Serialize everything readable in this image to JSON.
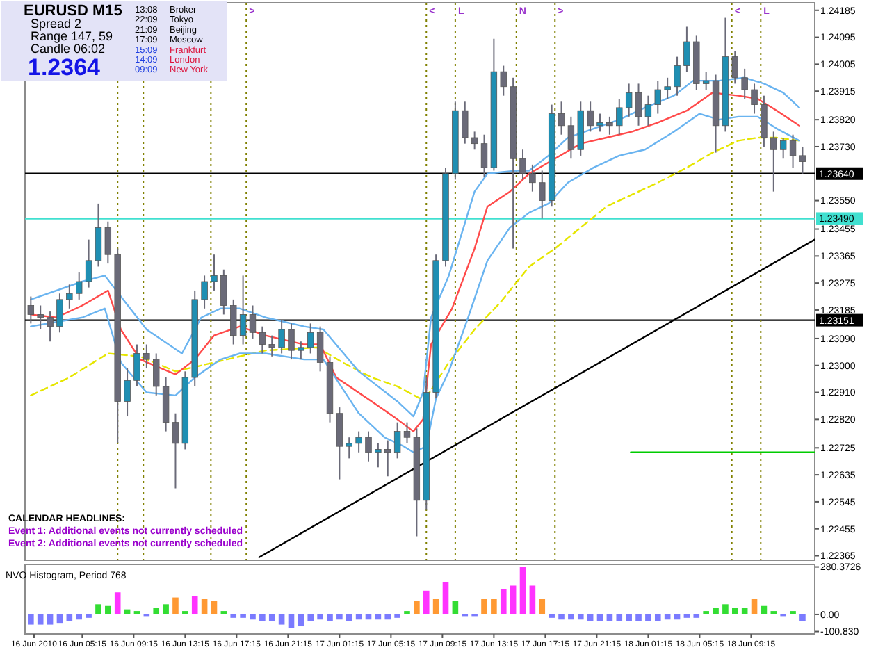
{
  "chart_data": [
    {
      "type": "candlestick",
      "title": "EURUSD M15",
      "tick_labels": "y",
      "x": [
        "2010-06-16T01:15",
        "2010-06-16T02:00",
        "2010-06-16T02:45",
        "2010-06-16T03:30",
        "2010-06-16T04:15",
        "2010-06-16T05:00",
        "2010-06-16T05:45",
        "2010-06-16T06:30",
        "2010-06-16T07:15",
        "2010-06-16T08:00",
        "2010-06-16T08:45",
        "2010-06-16T09:30",
        "2010-06-16T10:15",
        "2010-06-16T11:00",
        "2010-06-16T11:45",
        "2010-06-16T12:30",
        "2010-06-16T13:15",
        "2010-06-16T14:00",
        "2010-06-16T14:45",
        "2010-06-16T15:30",
        "2010-06-16T16:15",
        "2010-06-16T17:00",
        "2010-06-16T17:45",
        "2010-06-16T18:30",
        "2010-06-16T19:15",
        "2010-06-16T20:00",
        "2010-06-16T20:45",
        "2010-06-16T21:30",
        "2010-06-16T22:15",
        "2010-06-16T23:00",
        "2010-06-16T23:45",
        "2010-06-17T00:30",
        "2010-06-17T01:15",
        "2010-06-17T02:00",
        "2010-06-17T02:45",
        "2010-06-17T03:30",
        "2010-06-17T04:15",
        "2010-06-17T05:00",
        "2010-06-17T05:45",
        "2010-06-17T06:30",
        "2010-06-17T07:15",
        "2010-06-17T08:00",
        "2010-06-17T08:45",
        "2010-06-17T09:30",
        "2010-06-17T10:15",
        "2010-06-17T11:00",
        "2010-06-17T11:45",
        "2010-06-17T12:30",
        "2010-06-17T13:15",
        "2010-06-17T14:00",
        "2010-06-17T14:45",
        "2010-06-17T15:30",
        "2010-06-17T16:15",
        "2010-06-17T17:00",
        "2010-06-17T17:45",
        "2010-06-17T18:30",
        "2010-06-17T19:15",
        "2010-06-17T20:00",
        "2010-06-17T20:45",
        "2010-06-17T21:30",
        "2010-06-17T22:15",
        "2010-06-17T23:00",
        "2010-06-17T23:45",
        "2010-06-18T00:30",
        "2010-06-18T01:15",
        "2010-06-18T02:00",
        "2010-06-18T02:45",
        "2010-06-18T03:30",
        "2010-06-18T04:15",
        "2010-06-18T05:00",
        "2010-06-18T05:45",
        "2010-06-18T06:30",
        "2010-06-18T07:15",
        "2010-06-18T08:00",
        "2010-06-18T08:45",
        "2010-06-18T09:30",
        "2010-06-18T10:15",
        "2010-06-18T11:00",
        "2010-06-18T11:45",
        "2010-06-18T12:30",
        "2010-06-18T13:15"
      ],
      "ohlc": [
        [
          1.232,
          1.2323,
          1.2314,
          1.2317
        ],
        [
          1.2317,
          1.232,
          1.2312,
          1.2316
        ],
        [
          1.2316,
          1.2318,
          1.2308,
          1.2313
        ],
        [
          1.2313,
          1.2324,
          1.2311,
          1.2322
        ],
        [
          1.2322,
          1.2327,
          1.2319,
          1.2324
        ],
        [
          1.2324,
          1.2331,
          1.2322,
          1.2328
        ],
        [
          1.2328,
          1.2342,
          1.2326,
          1.2335
        ],
        [
          1.2335,
          1.2354,
          1.2333,
          1.2346
        ],
        [
          1.2346,
          1.2348,
          1.2334,
          1.2337
        ],
        [
          1.2337,
          1.2339,
          1.2274,
          1.2288
        ],
        [
          1.2288,
          1.2299,
          1.2283,
          1.2295
        ],
        [
          1.2295,
          1.2307,
          1.2293,
          1.2304
        ],
        [
          1.2304,
          1.2307,
          1.2299,
          1.2302
        ],
        [
          1.2302,
          1.2304,
          1.229,
          1.2293
        ],
        [
          1.2293,
          1.2296,
          1.2278,
          1.2281
        ],
        [
          1.2281,
          1.2284,
          1.2259,
          1.2274
        ],
        [
          1.2274,
          1.2298,
          1.2272,
          1.2296
        ],
        [
          1.2296,
          1.2325,
          1.2293,
          1.2322
        ],
        [
          1.2322,
          1.233,
          1.2319,
          1.2328
        ],
        [
          1.2328,
          1.2337,
          1.2325,
          1.233
        ],
        [
          1.233,
          1.2332,
          1.2317,
          1.232
        ],
        [
          1.232,
          1.2322,
          1.2307,
          1.231
        ],
        [
          1.231,
          1.233,
          1.2307,
          1.2317
        ],
        [
          1.2317,
          1.232,
          1.2309,
          1.2311
        ],
        [
          1.2311,
          1.2313,
          1.2304,
          1.2307
        ],
        [
          1.2307,
          1.231,
          1.2303,
          1.2306
        ],
        [
          1.2306,
          1.2315,
          1.2304,
          1.2312
        ],
        [
          1.2312,
          1.2314,
          1.2302,
          1.2305
        ],
        [
          1.2305,
          1.2308,
          1.2302,
          1.2306
        ],
        [
          1.2306,
          1.2314,
          1.2304,
          1.2311
        ],
        [
          1.2311,
          1.2313,
          1.2298,
          1.2301
        ],
        [
          1.2301,
          1.2303,
          1.2281,
          1.2284
        ],
        [
          1.2284,
          1.2286,
          1.2262,
          1.2273
        ],
        [
          1.2273,
          1.2276,
          1.2269,
          1.2274
        ],
        [
          1.2274,
          1.2278,
          1.2271,
          1.2276
        ],
        [
          1.2276,
          1.2278,
          1.2268,
          1.2271
        ],
        [
          1.2271,
          1.2274,
          1.2266,
          1.2272
        ],
        [
          1.2272,
          1.2275,
          1.2263,
          1.2271
        ],
        [
          1.2271,
          1.2281,
          1.2269,
          1.2278
        ],
        [
          1.2278,
          1.2281,
          1.2274,
          1.2276
        ],
        [
          1.2276,
          1.2279,
          1.2243,
          1.2255
        ],
        [
          1.2255,
          1.2296,
          1.2252,
          1.2291
        ],
        [
          1.2291,
          1.2337,
          1.2289,
          1.2335
        ],
        [
          1.2335,
          1.2366,
          1.2333,
          1.2364
        ],
        [
          1.2364,
          1.2388,
          1.2362,
          1.2385
        ],
        [
          1.2385,
          1.2388,
          1.2374,
          1.2376
        ],
        [
          1.2376,
          1.2378,
          1.2372,
          1.2374
        ],
        [
          1.2374,
          1.2377,
          1.2363,
          1.2366
        ],
        [
          1.2366,
          1.2409,
          1.2365,
          1.2398
        ],
        [
          1.2398,
          1.24,
          1.239,
          1.2393
        ],
        [
          1.2393,
          1.2396,
          1.2339,
          1.2369
        ],
        [
          1.2369,
          1.2372,
          1.2362,
          1.2364
        ],
        [
          1.2364,
          1.2367,
          1.2358,
          1.2361
        ],
        [
          1.2361,
          1.2365,
          1.2349,
          1.2355
        ],
        [
          1.2355,
          1.2387,
          1.2353,
          1.2384
        ],
        [
          1.2384,
          1.2388,
          1.2377,
          1.238
        ],
        [
          1.238,
          1.2383,
          1.2369,
          1.2372
        ],
        [
          1.2372,
          1.2388,
          1.237,
          1.2385
        ],
        [
          1.2385,
          1.2388,
          1.2378,
          1.238
        ],
        [
          1.238,
          1.2384,
          1.2378,
          1.2381
        ],
        [
          1.2381,
          1.2383,
          1.2377,
          1.238
        ],
        [
          1.238,
          1.2389,
          1.2377,
          1.2386
        ],
        [
          1.2386,
          1.2394,
          1.2383,
          1.2391
        ],
        [
          1.2391,
          1.2394,
          1.238,
          1.2383
        ],
        [
          1.2383,
          1.239,
          1.238,
          1.2387
        ],
        [
          1.2387,
          1.2395,
          1.2384,
          1.2392
        ],
        [
          1.2392,
          1.2396,
          1.2389,
          1.2393
        ],
        [
          1.2393,
          1.2403,
          1.239,
          1.24
        ],
        [
          1.24,
          1.2413,
          1.2398,
          1.2408
        ],
        [
          1.2408,
          1.241,
          1.2392,
          1.2394
        ],
        [
          1.2394,
          1.2398,
          1.2392,
          1.2395
        ],
        [
          1.2395,
          1.2397,
          1.2371,
          1.238
        ],
        [
          1.238,
          1.2416,
          1.2378,
          1.2403
        ],
        [
          1.2403,
          1.2405,
          1.2394,
          1.2396
        ],
        [
          1.2396,
          1.2399,
          1.2389,
          1.2392
        ],
        [
          1.2392,
          1.2394,
          1.2384,
          1.2387
        ],
        [
          1.2387,
          1.239,
          1.2373,
          1.2376
        ],
        [
          1.2376,
          1.2378,
          1.2358,
          1.2372
        ],
        [
          1.2372,
          1.2376,
          1.2369,
          1.2375
        ],
        [
          1.2375,
          1.2377,
          1.2366,
          1.237
        ],
        [
          1.237,
          1.2373,
          1.2364,
          1.2368
        ]
      ],
      "series": [
        {
          "type": "line",
          "color": "#e6e600",
          "line_style": "dashed",
          "x": [
            "2010-06-16T01:15",
            "2010-06-16T04:15",
            "2010-06-16T07:15",
            "2010-06-16T09:45",
            "2010-06-16T12:30",
            "2010-06-16T14:30",
            "2010-06-16T16:30",
            "2010-06-16T19:30",
            "2010-06-16T23:30",
            "2010-06-17T01:30",
            "2010-06-17T03:45",
            "2010-06-17T05:45",
            "2010-06-17T07:30",
            "2010-06-17T08:15",
            "2010-06-17T09:45",
            "2010-06-17T11:45",
            "2010-06-17T13:45",
            "2010-06-17T16:00",
            "2010-06-17T18:00",
            "2010-06-17T20:00",
            "2010-06-17T22:00",
            "2010-06-18T00:00",
            "2010-06-18T02:00",
            "2010-06-18T04:15",
            "2010-06-18T06:15",
            "2010-06-18T08:15",
            "2010-06-18T09:45",
            "2010-06-18T11:15",
            "2010-06-18T13:00"
          ],
          "values": [
            1.229,
            1.2296,
            1.2304,
            1.2303,
            1.2298,
            1.23,
            1.2302,
            1.2305,
            1.2306,
            1.2301,
            1.2296,
            1.2293,
            1.2289,
            1.2291,
            1.2301,
            1.2312,
            1.2321,
            1.2333,
            1.2339,
            1.2346,
            1.2353,
            1.2357,
            1.2361,
            1.2366,
            1.2371,
            1.2375,
            1.2376,
            1.2376,
            1.2375
          ]
        },
        {
          "type": "line",
          "color": "#ff4a4a",
          "x": [
            "2010-06-16T01:15",
            "2010-06-16T03:15",
            "2010-06-16T05:15",
            "2010-06-16T07:15",
            "2010-06-16T08:15",
            "2010-06-16T09:45",
            "2010-06-16T12:30",
            "2010-06-16T14:00",
            "2010-06-16T15:30",
            "2010-06-16T17:30",
            "2010-06-16T19:30",
            "2010-06-16T22:30",
            "2010-06-16T23:45",
            "2010-06-17T01:00",
            "2010-06-17T03:45",
            "2010-06-17T05:45",
            "2010-06-17T07:00",
            "2010-06-17T07:45",
            "2010-06-17T08:22",
            "2010-06-17T10:00",
            "2010-06-17T11:45",
            "2010-06-17T12:45",
            "2010-06-17T14:30",
            "2010-06-17T16:00",
            "2010-06-17T18:00",
            "2010-06-17T20:00",
            "2010-06-17T22:00",
            "2010-06-18T00:00",
            "2010-06-18T02:00",
            "2010-06-18T04:15",
            "2010-06-18T06:15",
            "2010-06-18T08:15",
            "2010-06-18T09:45",
            "2010-06-18T11:15",
            "2010-06-18T13:00"
          ],
          "values": [
            1.2317,
            1.2316,
            1.232,
            1.2325,
            1.2312,
            1.2302,
            1.2297,
            1.2302,
            1.231,
            1.2313,
            1.231,
            1.2307,
            1.2307,
            1.2296,
            1.2288,
            1.2282,
            1.2278,
            1.2282,
            1.2307,
            1.2319,
            1.2339,
            1.2353,
            1.2358,
            1.2364,
            1.2369,
            1.2374,
            1.2376,
            1.2378,
            1.2381,
            1.2385,
            1.2391,
            1.239,
            1.2389,
            1.2385,
            1.238
          ]
        },
        {
          "type": "line",
          "color": "#6ab4f0",
          "x": [
            "2010-06-16T01:15",
            "2010-06-16T05:15",
            "2010-06-16T07:00",
            "2010-06-16T08:15",
            "2010-06-16T10:15",
            "2010-06-16T13:00",
            "2010-06-16T14:30",
            "2010-06-16T16:00",
            "2010-06-16T17:30",
            "2010-06-16T19:30",
            "2010-06-16T22:30",
            "2010-06-17T00:00",
            "2010-06-17T02:45",
            "2010-06-17T05:45",
            "2010-06-17T07:00",
            "2010-06-17T07:45",
            "2010-06-17T08:22",
            "2010-06-17T09:45",
            "2010-06-17T11:45",
            "2010-06-17T12:45",
            "2010-06-17T15:00",
            "2010-06-17T16:00",
            "2010-06-17T17:30",
            "2010-06-17T19:00",
            "2010-06-17T21:00",
            "2010-06-17T23:00",
            "2010-06-18T01:00",
            "2010-06-18T03:15",
            "2010-06-18T04:45",
            "2010-06-18T06:45",
            "2010-06-18T08:45",
            "2010-06-18T10:15",
            "2010-06-18T11:45",
            "2010-06-18T13:00"
          ],
          "values": [
            1.2322,
            1.2328,
            1.233,
            1.2323,
            1.2312,
            1.2304,
            1.2316,
            1.2319,
            1.2319,
            1.2316,
            1.2313,
            1.2312,
            1.2298,
            1.2288,
            1.2283,
            1.2291,
            1.2316,
            1.233,
            1.2358,
            1.2364,
            1.2365,
            1.2365,
            1.237,
            1.2376,
            1.2379,
            1.2382,
            1.2386,
            1.239,
            1.2395,
            1.2395,
            1.2396,
            1.2394,
            1.2391,
            1.2386
          ]
        },
        {
          "type": "line",
          "color": "#6ab4f0",
          "x": [
            "2010-06-16T01:15",
            "2010-06-16T05:15",
            "2010-06-16T07:00",
            "2010-06-16T08:15",
            "2010-06-16T10:15",
            "2010-06-16T12:30",
            "2010-06-16T14:00",
            "2010-06-16T16:00",
            "2010-06-16T17:30",
            "2010-06-16T19:30",
            "2010-06-16T22:30",
            "2010-06-17T00:00",
            "2010-06-17T02:45",
            "2010-06-17T04:45",
            "2010-06-17T06:15",
            "2010-06-17T07:00",
            "2010-06-17T08:00",
            "2010-06-17T08:45",
            "2010-06-17T09:45",
            "2010-06-17T11:15",
            "2010-06-17T12:45",
            "2010-06-17T14:30",
            "2010-06-17T16:00",
            "2010-06-17T17:30",
            "2010-06-17T19:00",
            "2010-06-17T21:00",
            "2010-06-17T23:00",
            "2010-06-18T01:00",
            "2010-06-18T03:15",
            "2010-06-18T05:15",
            "2010-06-18T06:45",
            "2010-06-18T08:15",
            "2010-06-18T09:45",
            "2010-06-18T11:15",
            "2010-06-18T13:00"
          ],
          "values": [
            1.2313,
            1.2316,
            1.2319,
            1.2301,
            1.2291,
            1.229,
            1.2296,
            1.2302,
            1.2304,
            1.2304,
            1.2302,
            1.2302,
            1.2284,
            1.2276,
            1.2273,
            1.2271,
            1.2273,
            1.2289,
            1.2298,
            1.2316,
            1.2335,
            1.2346,
            1.2351,
            1.2354,
            1.2361,
            1.2366,
            1.237,
            1.2372,
            1.2378,
            1.2384,
            1.2382,
            1.2383,
            1.2383,
            1.2379,
            1.2375
          ]
        },
        {
          "type": "line",
          "color": "#000000",
          "x": [
            "2010-06-16T19:00",
            "2010-06-18T14:12"
          ],
          "values": [
            1.2236,
            1.2342
          ]
        },
        {
          "type": "line",
          "color": "#00cc00",
          "x": [
            "2010-06-17T23:54",
            "2010-06-18T14:12"
          ],
          "values": [
            1.2271,
            1.2271
          ]
        }
      ],
      "xlim": [
        "2010-06-16T00:48",
        "2010-06-18T14:12"
      ],
      "ylim": [
        1.2235,
        1.2421
      ],
      "yticks": [
        1.24185,
        1.24095,
        1.24005,
        1.23915,
        {
          "value": 1.2382,
          "label": "1.23820"
        },
        {
          "value": 1.2373,
          "label": "1.23730"
        },
        {
          "value": 1.2355,
          "label": "1.23550"
        },
        1.23455,
        1.23365,
        1.23275,
        1.23185,
        {
          "value": 1.2309,
          "label": "1.23090"
        },
        {
          "value": 1.23,
          "label": "1.23000"
        },
        {
          "value": 1.2291,
          "label": "1.22910"
        },
        {
          "value": 1.2282,
          "label": "1.22820"
        },
        1.22725,
        1.22635,
        1.22545,
        1.22455,
        1.22365
      ],
      "ref_lines": [
        {
          "axis": "y",
          "value": 1.2364,
          "label": "1.23640",
          "color": "#000000"
        },
        {
          "axis": "y",
          "value": 1.2349,
          "label": "1.23490",
          "color": "#40e0d0"
        },
        {
          "axis": "y",
          "value": 1.23151,
          "label": "1.23151",
          "color": "#000000"
        },
        {
          "axis": "x",
          "value": "2010-06-16T08:00",
          "label": null,
          "color": "#808000",
          "line_style": "dotted"
        },
        {
          "axis": "x",
          "value": "2010-06-16T10:00",
          "label": null,
          "color": "#808000",
          "line_style": "dotted"
        },
        {
          "axis": "x",
          "value": "2010-06-16T15:15",
          "label": null,
          "color": "#808000",
          "line_style": "dotted"
        },
        {
          "axis": "x",
          "value": "2010-06-16T18:00",
          "label": ">",
          "color": "#808000",
          "line_style": "dotted"
        },
        {
          "axis": "x",
          "value": "2010-06-17T08:00",
          "label": "<",
          "color": "#808000",
          "line_style": "dotted"
        },
        {
          "axis": "x",
          "value": "2010-06-17T10:15",
          "label": "L",
          "color": "#808000",
          "line_style": "dotted"
        },
        {
          "axis": "x",
          "value": "2010-06-17T15:00",
          "label": "N",
          "color": "#808000",
          "line_style": "dotted"
        },
        {
          "axis": "x",
          "value": "2010-06-17T18:00",
          "label": ">",
          "color": "#808000",
          "line_style": "dotted"
        },
        {
          "axis": "x",
          "value": "2010-06-18T07:45",
          "label": "<",
          "color": "#808000",
          "line_style": "dotted"
        },
        {
          "axis": "x",
          "value": "2010-06-18T10:00",
          "label": "L",
          "color": "#808000",
          "line_style": "dotted"
        }
      ],
      "annotations": [
        "Spread 2",
        "Range 147, 59",
        "Candle 06:02",
        "1.2364",
        "13:08",
        "Broker",
        "22:09",
        "Tokyo",
        "21:09",
        "Beijing",
        "17:09",
        "Moscow",
        "15:09",
        "Frankfurt",
        "14:09",
        "London",
        "09:09",
        "New York",
        "CALENDAR HEADLINES:",
        "Event 1: Additional events not currently scheduled",
        "Event 2: Additional events not currently scheduled"
      ]
    },
    {
      "type": "bar",
      "title": "NVO Histogram, Period 768",
      "x": [
        "2010-06-16T01:15",
        "2010-06-16T02:00",
        "2010-06-16T02:45",
        "2010-06-16T03:30",
        "2010-06-16T04:15",
        "2010-06-16T05:00",
        "2010-06-16T05:45",
        "2010-06-16T06:30",
        "2010-06-16T07:15",
        "2010-06-16T08:00",
        "2010-06-16T08:45",
        "2010-06-16T09:30",
        "2010-06-16T10:15",
        "2010-06-16T11:00",
        "2010-06-16T11:45",
        "2010-06-16T12:30",
        "2010-06-16T13:15",
        "2010-06-16T14:00",
        "2010-06-16T14:45",
        "2010-06-16T15:30",
        "2010-06-16T16:15",
        "2010-06-16T17:00",
        "2010-06-16T17:45",
        "2010-06-16T18:30",
        "2010-06-16T19:15",
        "2010-06-16T20:00",
        "2010-06-16T20:45",
        "2010-06-16T21:30",
        "2010-06-16T22:15",
        "2010-06-16T23:00",
        "2010-06-16T23:45",
        "2010-06-17T00:30",
        "2010-06-17T01:15",
        "2010-06-17T02:00",
        "2010-06-17T02:45",
        "2010-06-17T03:30",
        "2010-06-17T04:15",
        "2010-06-17T05:00",
        "2010-06-17T05:45",
        "2010-06-17T06:30",
        "2010-06-17T07:15",
        "2010-06-17T08:00",
        "2010-06-17T08:45",
        "2010-06-17T09:30",
        "2010-06-17T10:15",
        "2010-06-17T11:00",
        "2010-06-17T11:45",
        "2010-06-17T12:30",
        "2010-06-17T13:15",
        "2010-06-17T14:00",
        "2010-06-17T14:45",
        "2010-06-17T15:30",
        "2010-06-17T16:15",
        "2010-06-17T17:00",
        "2010-06-17T17:45",
        "2010-06-17T18:30",
        "2010-06-17T19:15",
        "2010-06-17T20:00",
        "2010-06-17T20:45",
        "2010-06-17T21:30",
        "2010-06-17T22:15",
        "2010-06-17T23:00",
        "2010-06-17T23:45",
        "2010-06-18T00:30",
        "2010-06-18T01:15",
        "2010-06-18T02:00",
        "2010-06-18T02:45",
        "2010-06-18T03:30",
        "2010-06-18T04:15",
        "2010-06-18T05:00",
        "2010-06-18T05:45",
        "2010-06-18T06:30",
        "2010-06-18T07:15",
        "2010-06-18T08:00",
        "2010-06-18T08:45",
        "2010-06-18T09:30",
        "2010-06-18T10:15",
        "2010-06-18T11:00",
        "2010-06-18T11:45",
        "2010-06-18T12:30",
        "2010-06-18T13:15"
      ],
      "values": [
        -60,
        -60,
        -60,
        -50,
        -40,
        -30,
        -20,
        60,
        50,
        130,
        30,
        20,
        -10,
        40,
        60,
        100,
        20,
        110,
        90,
        80,
        20,
        -20,
        -20,
        -30,
        -40,
        -40,
        -60,
        -80,
        -70,
        -40,
        -30,
        -40,
        -30,
        -40,
        -30,
        -30,
        -30,
        -30,
        -20,
        20,
        80,
        140,
        90,
        190,
        80,
        -10,
        -10,
        90,
        90,
        150,
        170,
        280,
        170,
        90,
        -20,
        -30,
        -30,
        -30,
        -40,
        -40,
        -40,
        -40,
        -40,
        -40,
        -40,
        -40,
        -30,
        -30,
        -20,
        -20,
        20,
        40,
        60,
        40,
        40,
        90,
        50,
        20,
        -10,
        20,
        -40
      ],
      "colors": [
        "#7b7bff",
        "#7b7bff",
        "#7b7bff",
        "#7b7bff",
        "#7b7bff",
        "#7b7bff",
        "#7b7bff",
        "#33dd33",
        "#33dd33",
        "#ff33ff",
        "#33dd33",
        "#33dd33",
        "#7b7bff",
        "#33dd33",
        "#33dd33",
        "#ff9933",
        "#33dd33",
        "#ff33ff",
        "#ff9933",
        "#ff9933",
        "#33dd33",
        "#7b7bff",
        "#7b7bff",
        "#7b7bff",
        "#7b7bff",
        "#7b7bff",
        "#7b7bff",
        "#7b7bff",
        "#7b7bff",
        "#7b7bff",
        "#7b7bff",
        "#7b7bff",
        "#7b7bff",
        "#7b7bff",
        "#7b7bff",
        "#7b7bff",
        "#7b7bff",
        "#7b7bff",
        "#7b7bff",
        "#33dd33",
        "#ff9933",
        "#ff33ff",
        "#ff9933",
        "#ff33ff",
        "#33dd33",
        "#7b7bff",
        "#7b7bff",
        "#ff9933",
        "#ff9933",
        "#ff33ff",
        "#ff33ff",
        "#ff33ff",
        "#ff33ff",
        "#ff9933",
        "#7b7bff",
        "#7b7bff",
        "#7b7bff",
        "#7b7bff",
        "#7b7bff",
        "#7b7bff",
        "#7b7bff",
        "#7b7bff",
        "#7b7bff",
        "#7b7bff",
        "#7b7bff",
        "#7b7bff",
        "#7b7bff",
        "#7b7bff",
        "#7b7bff",
        "#7b7bff",
        "#33dd33",
        "#33dd33",
        "#33dd33",
        "#33dd33",
        "#33dd33",
        "#ff9933",
        "#33dd33",
        "#33dd33",
        "#7b7bff",
        "#33dd33",
        "#7b7bff"
      ],
      "xlim": [
        "2010-06-16T00:48",
        "2010-06-18T14:12"
      ],
      "xticks": [
        {
          "value": "2010-06-16T01:30",
          "label": "16 Jun 2010"
        },
        {
          "value": "2010-06-16T05:15",
          "label": "16 Jun 05:15"
        },
        {
          "value": "2010-06-16T09:15",
          "label": "16 Jun 09:15"
        },
        {
          "value": "2010-06-16T13:15",
          "label": "16 Jun 13:15"
        },
        {
          "value": "2010-06-16T17:15",
          "label": "16 Jun 17:15"
        },
        {
          "value": "2010-06-16T21:15",
          "label": "16 Jun 21:15"
        },
        {
          "value": "2010-06-17T01:15",
          "label": "17 Jun 01:15"
        },
        {
          "value": "2010-06-17T05:15",
          "label": "17 Jun 05:15"
        },
        {
          "value": "2010-06-17T09:15",
          "label": "17 Jun 09:15"
        },
        {
          "value": "2010-06-17T13:15",
          "label": "17 Jun 13:15"
        },
        {
          "value": "2010-06-17T17:15",
          "label": "17 Jun 17:15"
        },
        {
          "value": "2010-06-17T21:15",
          "label": "17 Jun 21:15"
        },
        {
          "value": "2010-06-18T01:15",
          "label": "18 Jun 01:15"
        },
        {
          "value": "2010-06-18T05:15",
          "label": "18 Jun 05:15"
        },
        {
          "value": "2010-06-18T09:15",
          "label": "18 Jun 09:15"
        }
      ],
      "ylim": [
        -115,
        295
      ],
      "yticks": [
        280.3726,
        {
          "value": 0,
          "label": "0.00"
        },
        {
          "value": -100.83,
          "label": "-100.830"
        }
      ]
    }
  ]
}
